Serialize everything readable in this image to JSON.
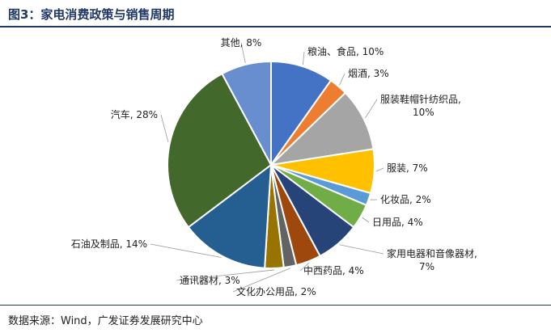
{
  "header": {
    "title": "图3：家电消费政策与销售周期"
  },
  "footer": {
    "source": "数据来源：Wind，广发证券发展研究中心"
  },
  "chart_data": {
    "type": "pie",
    "title": "",
    "slices": [
      {
        "name": "粮油、食品",
        "value": 10,
        "color": "#4472c4",
        "label_lines": [
          "粮油、食品, 10%"
        ]
      },
      {
        "name": "烟酒",
        "value": 3,
        "color": "#ed7d31",
        "label_lines": [
          "烟酒, 3%"
        ]
      },
      {
        "name": "服装鞋帽针纺织品",
        "value": 10,
        "color": "#a5a5a5",
        "label_lines": [
          "服装鞋帽针纺织品,",
          "10%"
        ]
      },
      {
        "name": "服装",
        "value": 7,
        "color": "#ffc000",
        "label_lines": [
          "服装, 7%"
        ]
      },
      {
        "name": "化妆品",
        "value": 2,
        "color": "#5b9bd5",
        "label_lines": [
          "化妆品, 2%"
        ]
      },
      {
        "name": "日用品",
        "value": 4,
        "color": "#70ad47",
        "label_lines": [
          "日用品, 4%"
        ]
      },
      {
        "name": "家用电器和音像器材",
        "value": 7,
        "color": "#264478",
        "label_lines": [
          "家用电器和音像器材,",
          "7%"
        ]
      },
      {
        "name": "中西药品",
        "value": 4,
        "color": "#9e480e",
        "label_lines": [
          "中西药品, 4%"
        ]
      },
      {
        "name": "文化办公用品",
        "value": 2,
        "color": "#636363",
        "label_lines": [
          "文化办公用品, 2%"
        ]
      },
      {
        "name": "通讯器材",
        "value": 3,
        "color": "#997300",
        "label_lines": [
          "通讯器材, 3%"
        ]
      },
      {
        "name": "石油及制品",
        "value": 14,
        "color": "#255e91",
        "label_lines": [
          "石油及制品, 14%"
        ]
      },
      {
        "name": "汽车",
        "value": 28,
        "color": "#43682b",
        "label_lines": [
          "汽车, 28%"
        ]
      },
      {
        "name": "其他",
        "value": 8,
        "color": "#698ed0",
        "label_lines": [
          "其他, 8%"
        ]
      }
    ]
  }
}
